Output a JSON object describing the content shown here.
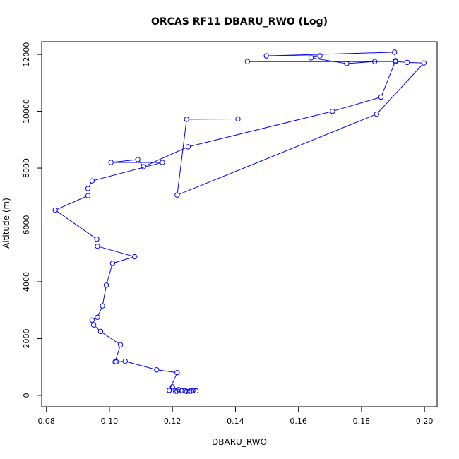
{
  "chart_data": {
    "type": "line",
    "title": "ORCAS RF11 DBARU_RWO (Log)",
    "xlabel": "DBARU_RWO",
    "ylabel": "Altitude (m)",
    "xlim": [
      0.0785,
      0.204
    ],
    "ylim": [
      -400,
      12450
    ],
    "xticks": [
      0.08,
      0.1,
      0.12,
      0.14,
      0.16,
      0.18,
      0.2
    ],
    "xtick_labels": [
      "0.08",
      "0.10",
      "0.12",
      "0.14",
      "0.16",
      "0.18",
      "0.20"
    ],
    "yticks": [
      0,
      2000,
      4000,
      6000,
      8000,
      10000,
      12000
    ],
    "ytick_labels": [
      "0",
      "2000",
      "4000",
      "6000",
      "8000",
      "10000",
      "12000"
    ],
    "grid": false,
    "series_color": "#0000ff",
    "series": [
      {
        "x": [
          0.119,
          0.12,
          0.121,
          0.122,
          0.123,
          0.124,
          0.1255,
          0.1265,
          0.1275,
          0.126,
          0.1245,
          0.123,
          0.1215,
          0.119,
          0.1215,
          0.115,
          0.105,
          0.1022,
          0.1018,
          0.1035,
          0.0972,
          0.095,
          0.0945,
          0.0962,
          0.0978,
          0.099,
          0.101,
          0.108,
          0.0962,
          0.096,
          0.0828,
          0.0932,
          0.0932,
          0.0945,
          0.1168,
          0.1005,
          0.109,
          0.1108,
          0.125,
          0.1708,
          0.1862,
          0.1908,
          0.1905,
          0.1498,
          0.1668,
          0.164,
          0.1753,
          0.1842,
          0.1438,
          0.1908,
          0.1945,
          0.1998,
          0.1848,
          0.1215,
          0.1245,
          0.1408
        ],
        "y": [
          175,
          300,
          150,
          200,
          170,
          160,
          150,
          170,
          160,
          150,
          140,
          160,
          150,
          175,
          800,
          900,
          1200,
          1180,
          1180,
          1780,
          2250,
          2480,
          2650,
          2750,
          3150,
          3880,
          4650,
          4880,
          5250,
          5500,
          6520,
          7030,
          7280,
          7550,
          8200,
          8200,
          8300,
          8050,
          8750,
          10000,
          10500,
          11780,
          12080,
          11950,
          11950,
          11880,
          11680,
          11750,
          11750,
          11750,
          11720,
          11700,
          9900,
          7050,
          9720,
          9730
        ]
      }
    ]
  }
}
